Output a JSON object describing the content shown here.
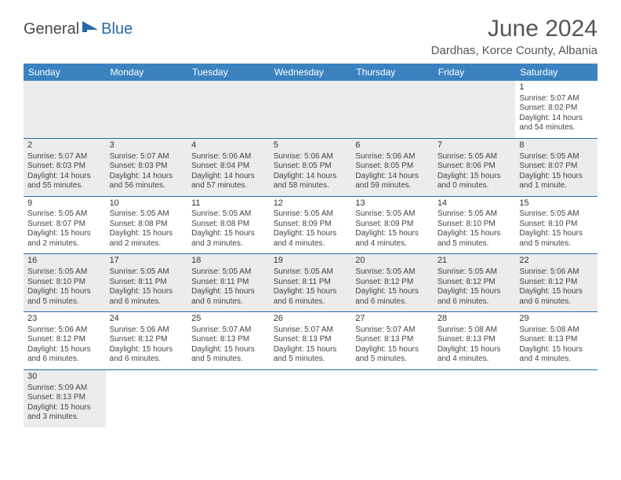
{
  "logo": {
    "general": "General",
    "blue": "Blue"
  },
  "title": "June 2024",
  "location": "Dardhas, Korce County, Albania",
  "day_headers": [
    "Sunday",
    "Monday",
    "Tuesday",
    "Wednesday",
    "Thursday",
    "Friday",
    "Saturday"
  ],
  "colors": {
    "header_bg": "#3b83c0",
    "header_text": "#ffffff",
    "cell_border": "#2968a8",
    "shaded": "#ececec",
    "logo_blue": "#2968a8"
  },
  "weeks": [
    [
      {
        "empty": true
      },
      {
        "empty": true
      },
      {
        "empty": true
      },
      {
        "empty": true
      },
      {
        "empty": true
      },
      {
        "empty": true
      },
      {
        "day": "1",
        "sunrise": "Sunrise: 5:07 AM",
        "sunset": "Sunset: 8:02 PM",
        "daylight": "Daylight: 14 hours and 54 minutes."
      }
    ],
    [
      {
        "day": "2",
        "sunrise": "Sunrise: 5:07 AM",
        "sunset": "Sunset: 8:03 PM",
        "daylight": "Daylight: 14 hours and 55 minutes.",
        "shaded": true
      },
      {
        "day": "3",
        "sunrise": "Sunrise: 5:07 AM",
        "sunset": "Sunset: 8:03 PM",
        "daylight": "Daylight: 14 hours and 56 minutes.",
        "shaded": true
      },
      {
        "day": "4",
        "sunrise": "Sunrise: 5:06 AM",
        "sunset": "Sunset: 8:04 PM",
        "daylight": "Daylight: 14 hours and 57 minutes.",
        "shaded": true
      },
      {
        "day": "5",
        "sunrise": "Sunrise: 5:06 AM",
        "sunset": "Sunset: 8:05 PM",
        "daylight": "Daylight: 14 hours and 58 minutes.",
        "shaded": true
      },
      {
        "day": "6",
        "sunrise": "Sunrise: 5:06 AM",
        "sunset": "Sunset: 8:05 PM",
        "daylight": "Daylight: 14 hours and 59 minutes.",
        "shaded": true
      },
      {
        "day": "7",
        "sunrise": "Sunrise: 5:05 AM",
        "sunset": "Sunset: 8:06 PM",
        "daylight": "Daylight: 15 hours and 0 minutes.",
        "shaded": true
      },
      {
        "day": "8",
        "sunrise": "Sunrise: 5:05 AM",
        "sunset": "Sunset: 8:07 PM",
        "daylight": "Daylight: 15 hours and 1 minute.",
        "shaded": true
      }
    ],
    [
      {
        "day": "9",
        "sunrise": "Sunrise: 5:05 AM",
        "sunset": "Sunset: 8:07 PM",
        "daylight": "Daylight: 15 hours and 2 minutes."
      },
      {
        "day": "10",
        "sunrise": "Sunrise: 5:05 AM",
        "sunset": "Sunset: 8:08 PM",
        "daylight": "Daylight: 15 hours and 2 minutes."
      },
      {
        "day": "11",
        "sunrise": "Sunrise: 5:05 AM",
        "sunset": "Sunset: 8:08 PM",
        "daylight": "Daylight: 15 hours and 3 minutes."
      },
      {
        "day": "12",
        "sunrise": "Sunrise: 5:05 AM",
        "sunset": "Sunset: 8:09 PM",
        "daylight": "Daylight: 15 hours and 4 minutes."
      },
      {
        "day": "13",
        "sunrise": "Sunrise: 5:05 AM",
        "sunset": "Sunset: 8:09 PM",
        "daylight": "Daylight: 15 hours and 4 minutes."
      },
      {
        "day": "14",
        "sunrise": "Sunrise: 5:05 AM",
        "sunset": "Sunset: 8:10 PM",
        "daylight": "Daylight: 15 hours and 5 minutes."
      },
      {
        "day": "15",
        "sunrise": "Sunrise: 5:05 AM",
        "sunset": "Sunset: 8:10 PM",
        "daylight": "Daylight: 15 hours and 5 minutes."
      }
    ],
    [
      {
        "day": "16",
        "sunrise": "Sunrise: 5:05 AM",
        "sunset": "Sunset: 8:10 PM",
        "daylight": "Daylight: 15 hours and 5 minutes.",
        "shaded": true
      },
      {
        "day": "17",
        "sunrise": "Sunrise: 5:05 AM",
        "sunset": "Sunset: 8:11 PM",
        "daylight": "Daylight: 15 hours and 6 minutes.",
        "shaded": true
      },
      {
        "day": "18",
        "sunrise": "Sunrise: 5:05 AM",
        "sunset": "Sunset: 8:11 PM",
        "daylight": "Daylight: 15 hours and 6 minutes.",
        "shaded": true
      },
      {
        "day": "19",
        "sunrise": "Sunrise: 5:05 AM",
        "sunset": "Sunset: 8:11 PM",
        "daylight": "Daylight: 15 hours and 6 minutes.",
        "shaded": true
      },
      {
        "day": "20",
        "sunrise": "Sunrise: 5:05 AM",
        "sunset": "Sunset: 8:12 PM",
        "daylight": "Daylight: 15 hours and 6 minutes.",
        "shaded": true
      },
      {
        "day": "21",
        "sunrise": "Sunrise: 5:05 AM",
        "sunset": "Sunset: 8:12 PM",
        "daylight": "Daylight: 15 hours and 6 minutes.",
        "shaded": true
      },
      {
        "day": "22",
        "sunrise": "Sunrise: 5:06 AM",
        "sunset": "Sunset: 8:12 PM",
        "daylight": "Daylight: 15 hours and 6 minutes.",
        "shaded": true
      }
    ],
    [
      {
        "day": "23",
        "sunrise": "Sunrise: 5:06 AM",
        "sunset": "Sunset: 8:12 PM",
        "daylight": "Daylight: 15 hours and 6 minutes."
      },
      {
        "day": "24",
        "sunrise": "Sunrise: 5:06 AM",
        "sunset": "Sunset: 8:12 PM",
        "daylight": "Daylight: 15 hours and 6 minutes."
      },
      {
        "day": "25",
        "sunrise": "Sunrise: 5:07 AM",
        "sunset": "Sunset: 8:13 PM",
        "daylight": "Daylight: 15 hours and 5 minutes."
      },
      {
        "day": "26",
        "sunrise": "Sunrise: 5:07 AM",
        "sunset": "Sunset: 8:13 PM",
        "daylight": "Daylight: 15 hours and 5 minutes."
      },
      {
        "day": "27",
        "sunrise": "Sunrise: 5:07 AM",
        "sunset": "Sunset: 8:13 PM",
        "daylight": "Daylight: 15 hours and 5 minutes."
      },
      {
        "day": "28",
        "sunrise": "Sunrise: 5:08 AM",
        "sunset": "Sunset: 8:13 PM",
        "daylight": "Daylight: 15 hours and 4 minutes."
      },
      {
        "day": "29",
        "sunrise": "Sunrise: 5:08 AM",
        "sunset": "Sunset: 8:13 PM",
        "daylight": "Daylight: 15 hours and 4 minutes."
      }
    ],
    [
      {
        "day": "30",
        "sunrise": "Sunrise: 5:09 AM",
        "sunset": "Sunset: 8:13 PM",
        "daylight": "Daylight: 15 hours and 3 minutes.",
        "shaded": true
      },
      {
        "empty": true,
        "noborder": true
      },
      {
        "empty": true,
        "noborder": true
      },
      {
        "empty": true,
        "noborder": true
      },
      {
        "empty": true,
        "noborder": true
      },
      {
        "empty": true,
        "noborder": true
      },
      {
        "empty": true,
        "noborder": true
      }
    ]
  ]
}
